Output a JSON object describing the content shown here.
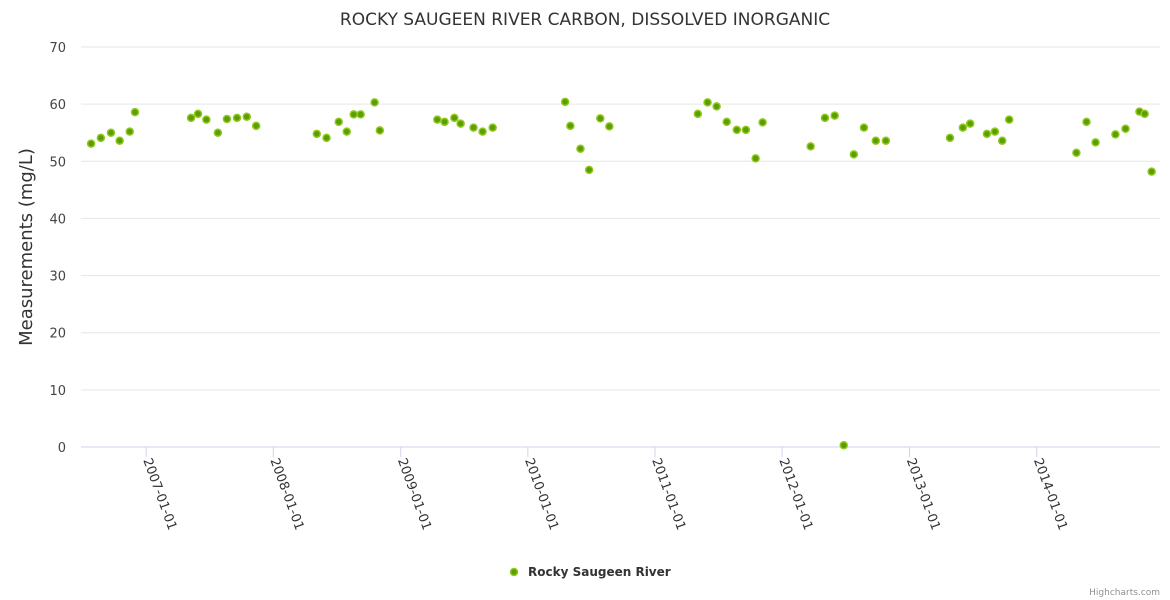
{
  "chart_data": {
    "type": "scatter",
    "title": "ROCKY SAUGEEN RIVER CARBON, DISSOLVED INORGANIC",
    "xlabel": "",
    "ylabel": "Measurements (mg/L)",
    "ylim": [
      0,
      70
    ],
    "yticks": [
      0,
      10,
      20,
      30,
      40,
      50,
      60,
      70
    ],
    "xlim": [
      "2006-06-28",
      "2014-12-21"
    ],
    "xticks": [
      "2007-01-01",
      "2008-01-01",
      "2009-01-01",
      "2010-01-01",
      "2011-01-01",
      "2012-01-01",
      "2013-01-01",
      "2014-01-01"
    ],
    "grid": true,
    "legend_position": "bottom-center",
    "series": [
      {
        "name": "Rocky Saugeen River",
        "color": "#5a9e00",
        "border_color": "#90c81e",
        "points": [
          [
            "2006-07-27",
            53.1
          ],
          [
            "2006-08-24",
            54.1
          ],
          [
            "2006-09-22",
            55.0
          ],
          [
            "2006-10-17",
            53.6
          ],
          [
            "2006-11-15",
            55.2
          ],
          [
            "2006-11-30",
            58.6
          ],
          [
            "2007-05-10",
            57.6
          ],
          [
            "2007-05-30",
            58.3
          ],
          [
            "2007-06-23",
            57.3
          ],
          [
            "2007-07-26",
            55.0
          ],
          [
            "2007-08-21",
            57.4
          ],
          [
            "2007-09-19",
            57.6
          ],
          [
            "2007-10-17",
            57.8
          ],
          [
            "2007-11-13",
            56.2
          ],
          [
            "2008-05-05",
            54.8
          ],
          [
            "2008-06-02",
            54.1
          ],
          [
            "2008-07-07",
            56.9
          ],
          [
            "2008-07-30",
            55.2
          ],
          [
            "2008-08-19",
            58.2
          ],
          [
            "2008-09-08",
            58.2
          ],
          [
            "2008-10-18",
            60.3
          ],
          [
            "2008-11-02",
            55.4
          ],
          [
            "2009-04-16",
            57.3
          ],
          [
            "2009-05-07",
            56.9
          ],
          [
            "2009-06-04",
            57.6
          ],
          [
            "2009-06-22",
            56.6
          ],
          [
            "2009-07-29",
            55.9
          ],
          [
            "2009-08-24",
            55.2
          ],
          [
            "2009-09-22",
            55.9
          ],
          [
            "2010-04-18",
            60.4
          ],
          [
            "2010-05-03",
            56.2
          ],
          [
            "2010-06-01",
            52.2
          ],
          [
            "2010-06-26",
            48.5
          ],
          [
            "2010-07-28",
            57.5
          ],
          [
            "2010-08-23",
            56.1
          ],
          [
            "2011-05-04",
            58.3
          ],
          [
            "2011-06-01",
            60.3
          ],
          [
            "2011-06-27",
            59.6
          ],
          [
            "2011-07-26",
            56.9
          ],
          [
            "2011-08-24",
            55.5
          ],
          [
            "2011-09-19",
            55.5
          ],
          [
            "2011-10-17",
            50.5
          ],
          [
            "2011-11-06",
            56.8
          ],
          [
            "2012-03-23",
            52.6
          ],
          [
            "2012-05-03",
            57.6
          ],
          [
            "2012-05-31",
            58.0
          ],
          [
            "2012-06-26",
            0.3
          ],
          [
            "2012-07-25",
            51.2
          ],
          [
            "2012-08-23",
            55.9
          ],
          [
            "2012-09-26",
            53.6
          ],
          [
            "2012-10-25",
            53.6
          ],
          [
            "2013-04-27",
            54.1
          ],
          [
            "2013-06-03",
            55.9
          ],
          [
            "2013-06-24",
            56.6
          ],
          [
            "2013-08-11",
            54.8
          ],
          [
            "2013-09-03",
            55.2
          ],
          [
            "2013-09-24",
            53.6
          ],
          [
            "2013-10-14",
            57.3
          ],
          [
            "2014-04-25",
            51.5
          ],
          [
            "2014-05-24",
            56.9
          ],
          [
            "2014-06-19",
            53.3
          ],
          [
            "2014-08-15",
            54.7
          ],
          [
            "2014-09-13",
            55.7
          ],
          [
            "2014-10-23",
            58.7
          ],
          [
            "2014-11-07",
            58.3
          ],
          [
            "2014-11-27",
            48.2
          ]
        ]
      }
    ]
  },
  "credits": "Highcharts.com",
  "colors": {
    "grid": "#e6e6e6",
    "axis_line": "#ccd6eb",
    "title": "#333333"
  }
}
